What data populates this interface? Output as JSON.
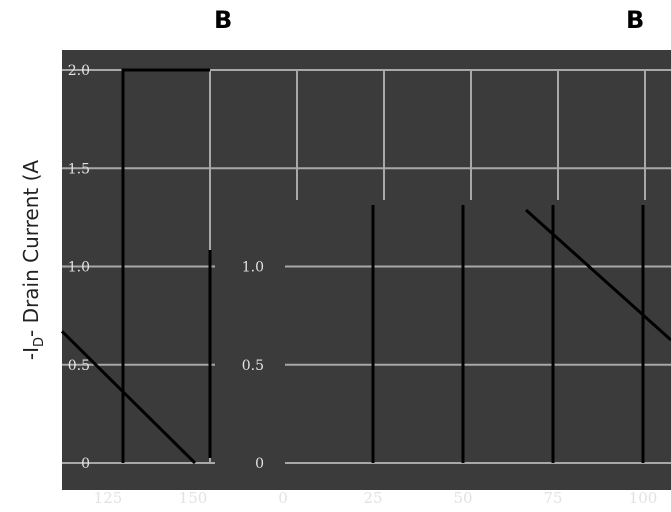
{
  "panel_letters": [
    "B",
    "B"
  ],
  "chart_data": [
    {
      "type": "line",
      "panel": "left",
      "ylabel": "-I",
      "ylabel_subscript": "D",
      "ylabel_rest": "- Drain Current (A",
      "x_ticks": [
        "125",
        "150"
      ],
      "y_ticks": [
        "2.0",
        "1.5",
        "1.0",
        "0.5",
        "0"
      ],
      "xlim": [
        100,
        150
      ],
      "ylim": [
        0,
        2.0
      ],
      "grid": true,
      "series": [
        {
          "x": [
            100,
            150
          ],
          "y": [
            0.67,
            0
          ]
        }
      ]
    },
    {
      "type": "line",
      "panel": "right",
      "x_ticks": [
        "0",
        "25",
        "50",
        "75",
        "100"
      ],
      "y_ticks": [
        "1.0",
        "0.5",
        "0"
      ],
      "xlim": [
        0,
        110
      ],
      "ylim": [
        0,
        2.0
      ],
      "grid": true,
      "series": [
        {
          "x": [
            0,
            25,
            150
          ],
          "y": [
            2.0,
            2.0,
            0
          ]
        }
      ]
    }
  ]
}
